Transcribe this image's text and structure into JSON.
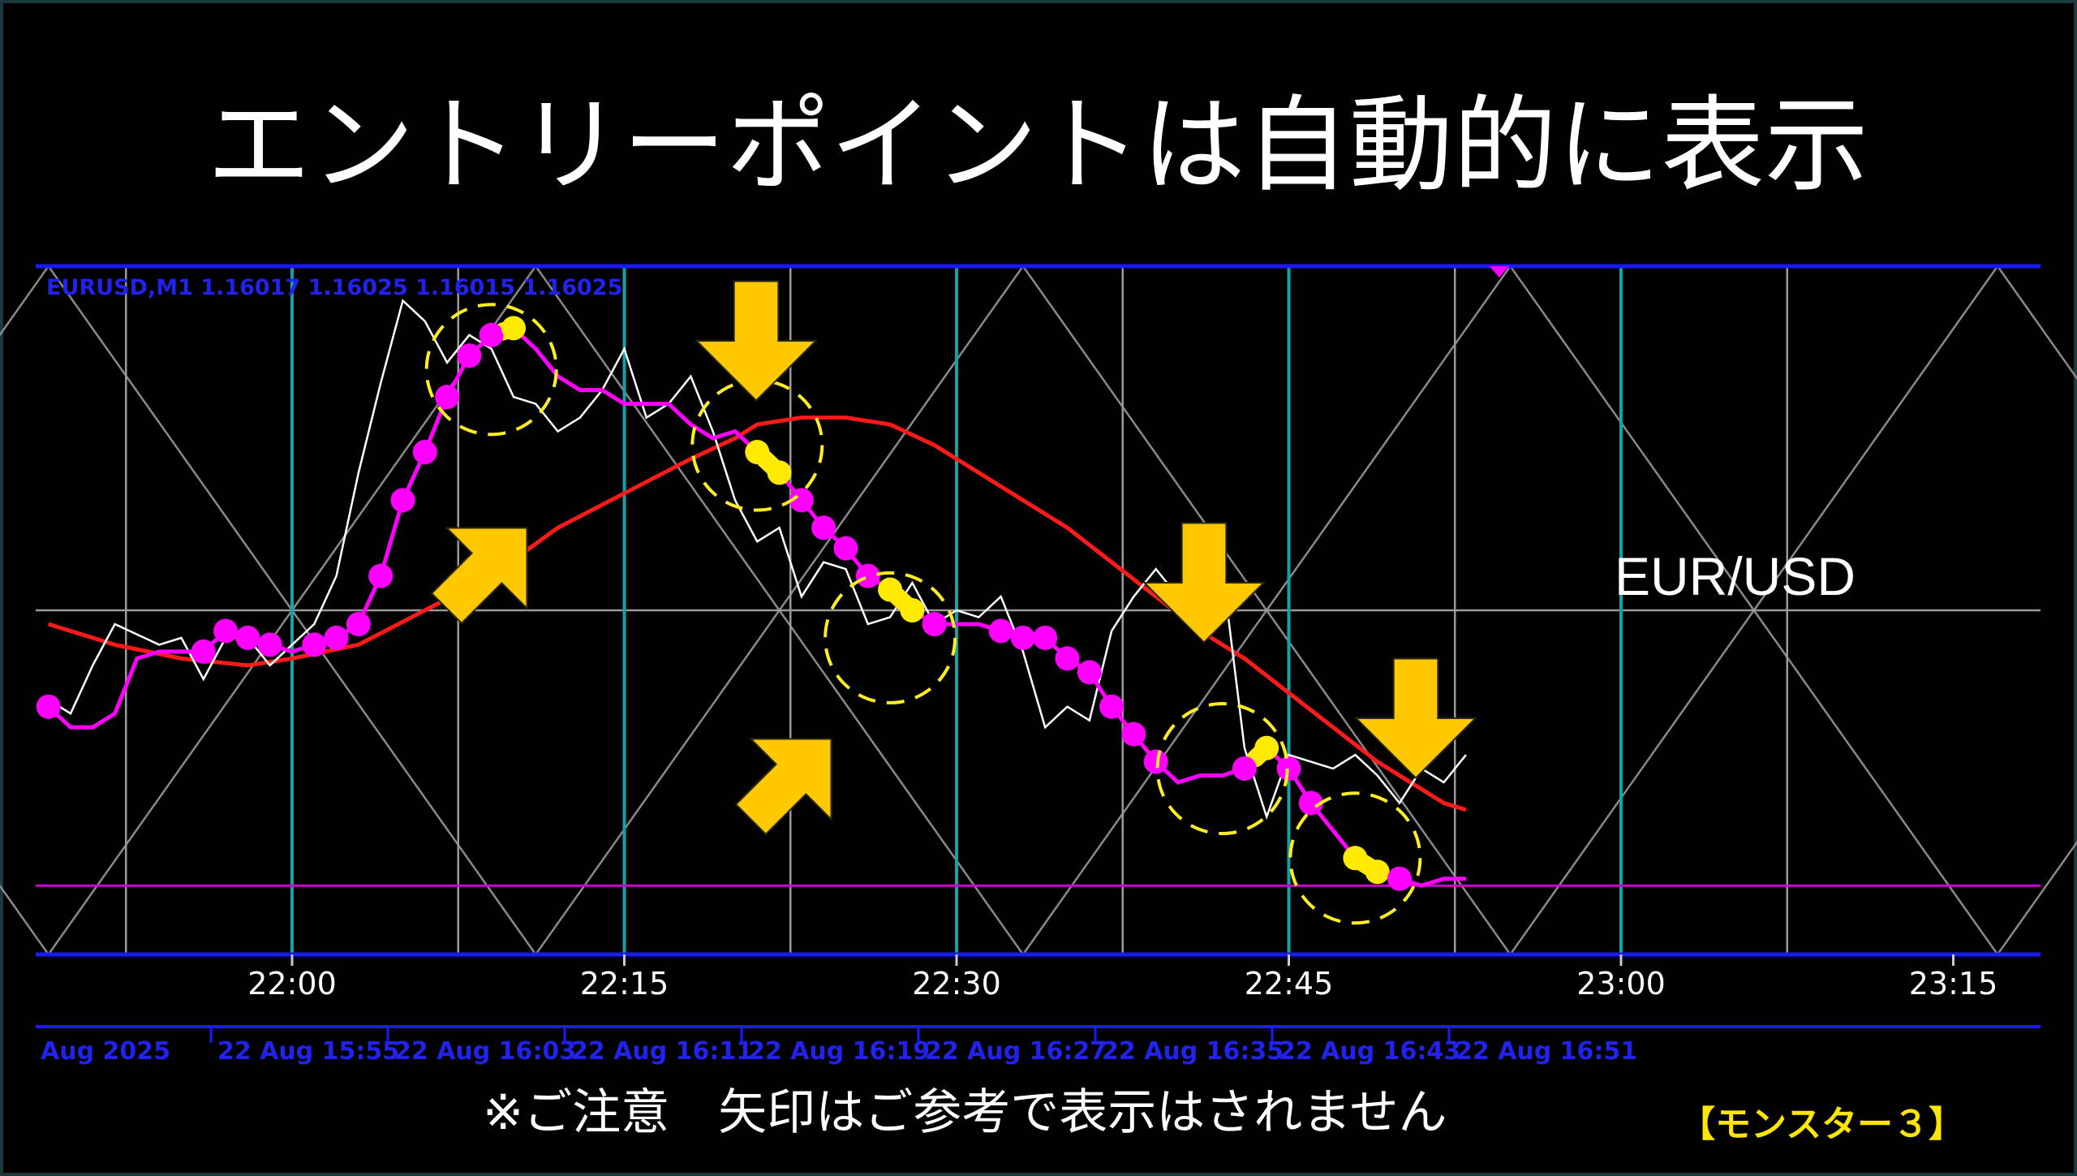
{
  "headline": "エントリーポイントは自動的に表示",
  "footer_note": "※ご注意　矢印はご参考で表示はされません",
  "product_tag": "【モンスター３】",
  "colors": {
    "background": "#000000",
    "price_line": "#ffffff",
    "indicator": "#ff00ff",
    "signal_highlight": "#ffea00",
    "moving_average": "#ff1a1a",
    "arrow": "#ffc800",
    "circle": "#ffee22",
    "time_grid": "#11a3a6",
    "border": "#1a1aff"
  },
  "chart_data": {
    "type": "line",
    "symbol_info": "EURUSD,M1  1.16017 1.16025 1.16015 1.16025",
    "watermark": "EUR/USD",
    "xticks": [
      "22:00",
      "22:15",
      "22:30",
      "22:45",
      "23:00",
      "23:15"
    ],
    "date_labels": [
      "Aug 2025",
      "22 Aug 15:55",
      "22 Aug 16:03",
      "22 Aug 16:11",
      "22 Aug 16:19",
      "22 Aug 16:27",
      "22 Aug 16:35",
      "22 Aug 16:43",
      "22 Aug 16:51"
    ],
    "xlim": [
      -11,
      79
    ],
    "ylim": [
      0,
      100
    ],
    "series": [
      {
        "x": [
          -11,
          -10,
          -9,
          -8,
          -6,
          -5,
          -4,
          -3,
          -2,
          -1,
          0,
          1,
          2,
          3,
          4,
          5,
          6,
          7,
          8,
          9,
          10,
          11,
          12,
          13,
          14,
          15,
          16,
          17,
          18,
          19,
          20,
          21,
          22,
          23,
          24,
          25,
          26,
          27,
          28,
          29,
          30,
          31,
          32,
          33,
          34,
          35,
          36,
          37,
          38,
          39,
          40,
          41,
          42,
          43,
          44,
          45,
          46,
          47,
          48,
          49,
          50,
          51,
          52,
          53
        ],
        "values": [
          37,
          35,
          42,
          48,
          45,
          46,
          40,
          46,
          46,
          42,
          45,
          48,
          55,
          70,
          83,
          95,
          92,
          86,
          90,
          88,
          81,
          80,
          76,
          78,
          82,
          88,
          78,
          80,
          84,
          76,
          66,
          60,
          62,
          52,
          57,
          56,
          48,
          49,
          54,
          48,
          50,
          49,
          52,
          44,
          33,
          36,
          34,
          47,
          52,
          56,
          52,
          50,
          56,
          30,
          20,
          29,
          28,
          27,
          29,
          26,
          22,
          27,
          25,
          29
        ]
      },
      {
        "x": [
          -11,
          -10,
          -9,
          -8,
          -7,
          -6,
          -5,
          -4,
          -3,
          -2,
          -1,
          0,
          1,
          2,
          3,
          4,
          5,
          6,
          7,
          8,
          9,
          10,
          11,
          12,
          13,
          14,
          15,
          16,
          17,
          18,
          19,
          20,
          21,
          22,
          23,
          24,
          25,
          26,
          27,
          28,
          29,
          30,
          31,
          32,
          33,
          34,
          35,
          36,
          37,
          38,
          39,
          40,
          41,
          42,
          43,
          44,
          45,
          46,
          47,
          48,
          49,
          50,
          51,
          52,
          53
        ],
        "values": [
          36,
          33,
          33,
          35,
          43,
          44,
          44,
          44,
          47,
          46,
          45,
          44,
          45,
          46,
          48,
          55,
          66,
          73,
          81,
          87,
          90,
          91,
          88,
          84,
          82,
          82,
          80,
          80,
          80,
          77,
          75,
          76,
          73,
          70,
          66,
          62,
          59,
          55,
          53,
          50,
          48,
          48,
          48,
          47,
          46,
          46,
          43,
          41,
          36,
          32,
          28,
          25,
          26,
          26,
          27,
          30,
          27,
          22,
          18,
          14,
          12,
          11,
          10,
          11,
          11
        ]
      },
      {
        "x": [
          -11,
          -8,
          -5,
          -2,
          0,
          3,
          6,
          9,
          12,
          15,
          18,
          20,
          21,
          23,
          25,
          27,
          29,
          31,
          33,
          35,
          37,
          39,
          41,
          43,
          45,
          47,
          49,
          51,
          52,
          53
        ],
        "values": [
          48,
          45,
          43,
          42,
          43,
          45,
          50,
          55,
          62,
          67,
          72,
          75,
          77,
          78,
          78,
          77,
          74,
          70,
          66,
          62,
          57,
          52,
          47,
          43,
          38,
          33,
          28,
          24,
          22,
          21
        ]
      }
    ],
    "signal_segments": [
      [
        9.5,
        10
      ],
      [
        21,
        22
      ],
      [
        27,
        28
      ],
      [
        43.5,
        44
      ],
      [
        48,
        49
      ]
    ]
  }
}
